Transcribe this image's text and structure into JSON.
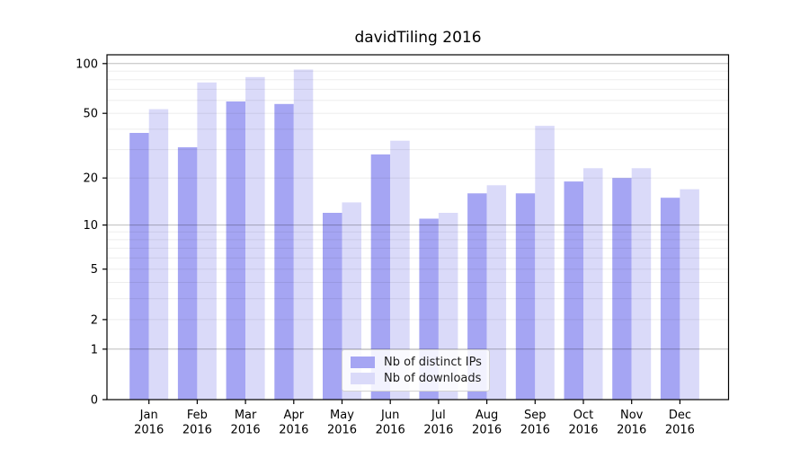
{
  "chart_data": {
    "type": "bar",
    "title": "davidTiling 2016",
    "categories": [
      "Jan",
      "Feb",
      "Mar",
      "Apr",
      "May",
      "Jun",
      "Jul",
      "Aug",
      "Sep",
      "Oct",
      "Nov",
      "Dec"
    ],
    "category_year": "2016",
    "series": [
      {
        "name": "Nb of distinct IPs",
        "color": "#a5a5f3",
        "values": [
          38,
          31,
          59,
          57,
          12,
          28,
          11,
          16,
          16,
          19,
          20,
          15
        ]
      },
      {
        "name": "Nb of downloads",
        "color": "#dadaf9",
        "values": [
          53,
          77,
          83,
          92,
          14,
          34,
          12,
          18,
          42,
          23,
          23,
          17
        ]
      }
    ],
    "xlabel": "",
    "ylabel": "",
    "yscale": "log1p",
    "ylim": [
      0,
      113
    ],
    "ytick_labels": [
      0,
      1,
      2,
      5,
      10,
      20,
      50,
      100
    ],
    "grid": true,
    "grid_major_at": [
      1,
      10,
      100
    ],
    "grid_minor_at": [
      2,
      3,
      4,
      5,
      6,
      7,
      8,
      9,
      20,
      30,
      40,
      50,
      60,
      70,
      80,
      90
    ],
    "legend_position": "lower center inside plot"
  },
  "colors": {
    "background": "#ffffff",
    "spine": "#000000",
    "tick_text": "#000000",
    "grid_major": "rgba(0,0,0,0.26)",
    "grid_minor": "rgba(0,0,0,0.07)",
    "legend_border": "#d2d2d2"
  }
}
